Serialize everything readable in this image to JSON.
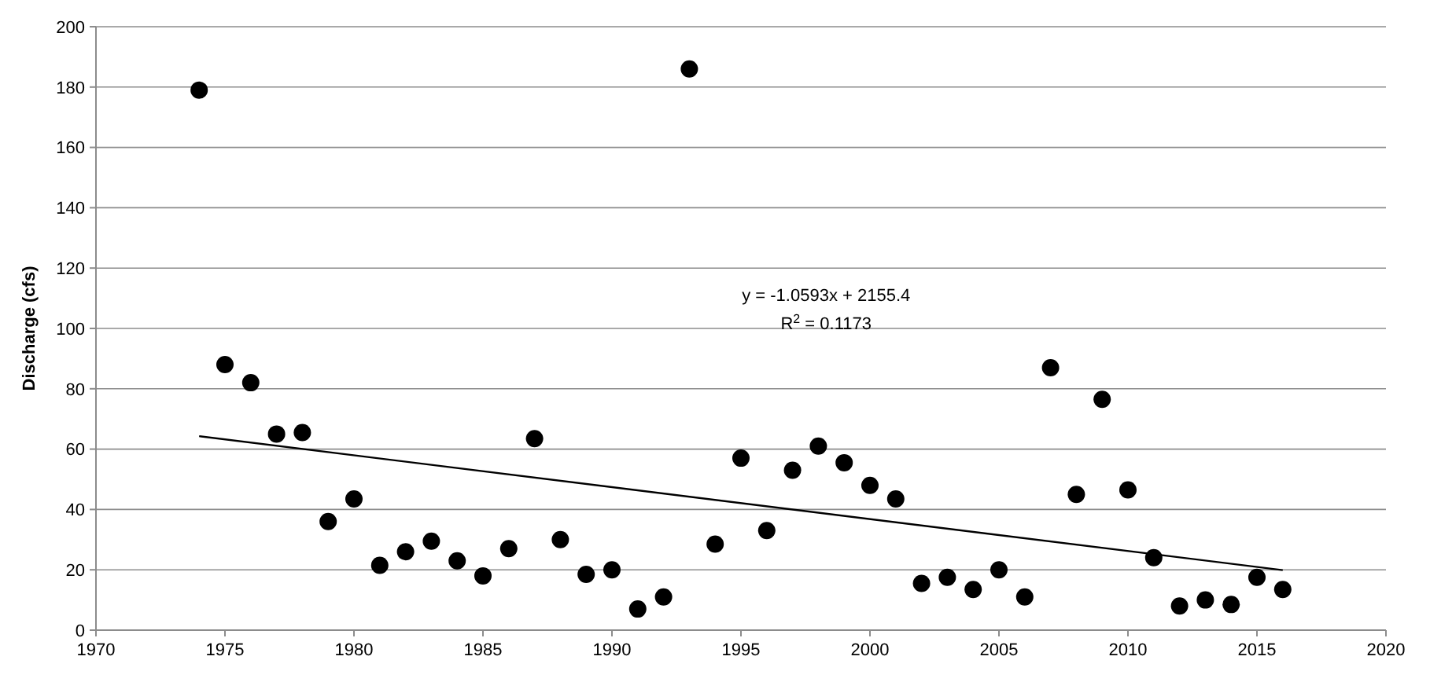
{
  "chart_data": {
    "type": "scatter",
    "ylabel": "Discharge (cfs)",
    "xlim": [
      1970,
      2020
    ],
    "xticks": [
      1970,
      1975,
      1980,
      1985,
      1990,
      1995,
      2000,
      2005,
      2010,
      2015,
      2020
    ],
    "ylim": [
      0,
      200
    ],
    "yticks": [
      0,
      20,
      40,
      60,
      80,
      100,
      120,
      140,
      160,
      180,
      200
    ],
    "grid": "y",
    "marker": "circle",
    "annotations": [
      "y = -1.0593x + 2155.4",
      "R$^{2}$ = 0.1173"
    ],
    "series": [
      {
        "color": "#000000",
        "x": [
          1974,
          1975,
          1976,
          1977,
          1978,
          1979,
          1980,
          1981,
          1982,
          1983,
          1984,
          1985,
          1986,
          1987,
          1988,
          1989,
          1990,
          1991,
          1992,
          1993,
          1994,
          1995,
          1996,
          1997,
          1998,
          1999,
          2000,
          2001,
          2002,
          2003,
          2004,
          2005,
          2006,
          2007,
          2008,
          2009,
          2010,
          2011,
          2012,
          2013,
          2014,
          2015,
          2016
        ],
        "values": [
          179,
          88,
          82,
          65,
          65.5,
          36,
          43.5,
          21.5,
          26,
          29.5,
          23,
          18,
          27,
          63.5,
          30,
          18.5,
          20,
          7,
          11,
          186,
          28.5,
          57,
          33,
          53,
          61,
          55.5,
          48,
          43.5,
          15.5,
          17.5,
          13.5,
          20,
          11,
          87,
          45,
          76.5,
          46.5,
          24,
          8,
          10,
          8.5,
          17.5,
          13.5
        ]
      },
      {
        "type": "line",
        "color": "#000000",
        "x": [
          1974,
          2016
        ],
        "values": [
          64.3,
          19.9
        ],
        "marker": "none",
        "line_style": "solid"
      }
    ]
  }
}
